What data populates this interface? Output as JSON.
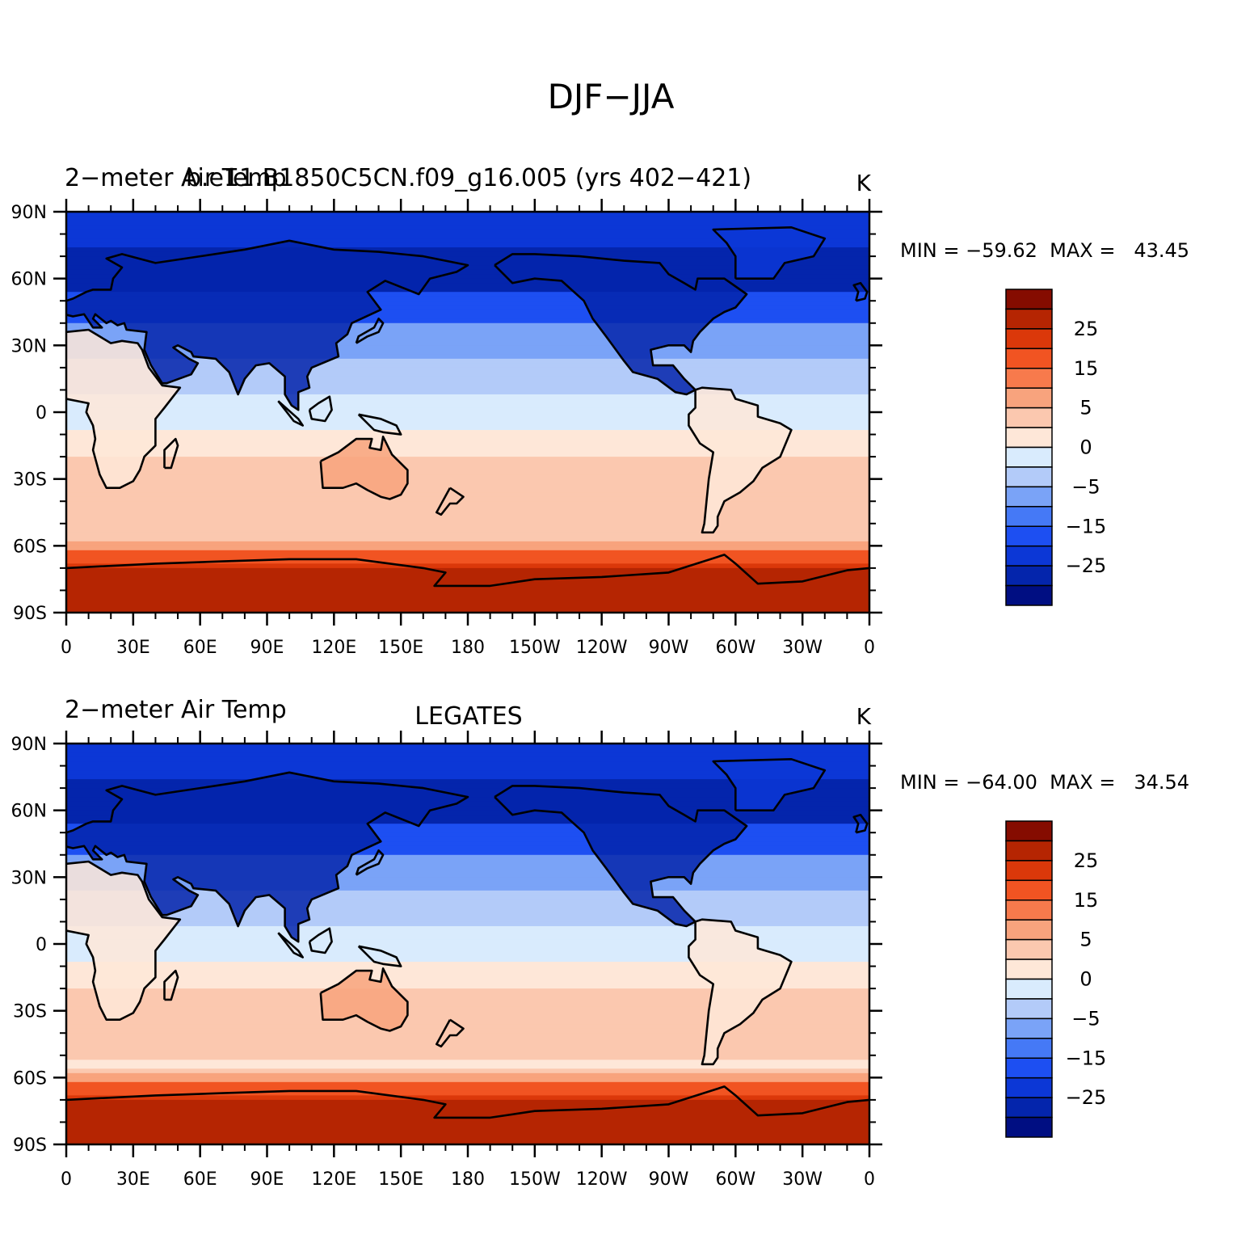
{
  "figure": {
    "title": "DJF−JJA"
  },
  "colorbar": {
    "colors": [
      "#000e82",
      "#0425ac",
      "#0c37d6",
      "#1d4ff2",
      "#4579f6",
      "#7aa3f7",
      "#b3cbf9",
      "#d9ebfd",
      "#fee7d8",
      "#fbc8af",
      "#f8a37d",
      "#f77a4c",
      "#f15422",
      "#db380a",
      "#b52502",
      "#850c00"
    ],
    "labels": [
      {
        "between": 2,
        "text": "−25"
      },
      {
        "between": 4,
        "text": "−15"
      },
      {
        "between": 6,
        "text": "−5"
      },
      {
        "between": 8,
        "text": "0"
      },
      {
        "between": 10,
        "text": "5"
      },
      {
        "between": 12,
        "text": "15"
      },
      {
        "between": 14,
        "text": "25"
      }
    ]
  },
  "axes": {
    "lat_labels": [
      "90N",
      "60N",
      "30N",
      "0",
      "30S",
      "60S",
      "90S"
    ],
    "lon_labels": [
      "0",
      "30E",
      "60E",
      "90E",
      "120E",
      "150E",
      "180",
      "150W",
      "120W",
      "90W",
      "60W",
      "30W",
      "0"
    ]
  },
  "panels": [
    {
      "left_label": "2−meter Air Temp",
      "center_label": "b.e11.B1850C5CN.f09_g16.005 (yrs 402−421)",
      "units": "K",
      "stats": "MIN = −59.62  MAX =   43.45",
      "chart_data": {
        "type": "contour-map",
        "variable": "2-meter Air Temp",
        "units": "K",
        "season_difference": "DJF-JJA",
        "min": -59.62,
        "max": 43.45,
        "lon_range": [
          0,
          360
        ],
        "lat_range": [
          -90,
          90
        ]
      }
    },
    {
      "left_label": "2−meter Air Temp",
      "center_label": "LEGATES",
      "units": "K",
      "stats": "MIN = −64.00  MAX =   34.54",
      "chart_data": {
        "type": "contour-map",
        "variable": "2-meter Air Temp",
        "units": "K",
        "season_difference": "DJF-JJA",
        "min": -64.0,
        "max": 34.54,
        "lon_range": [
          0,
          360
        ],
        "lat_range": [
          -90,
          90
        ]
      }
    }
  ]
}
